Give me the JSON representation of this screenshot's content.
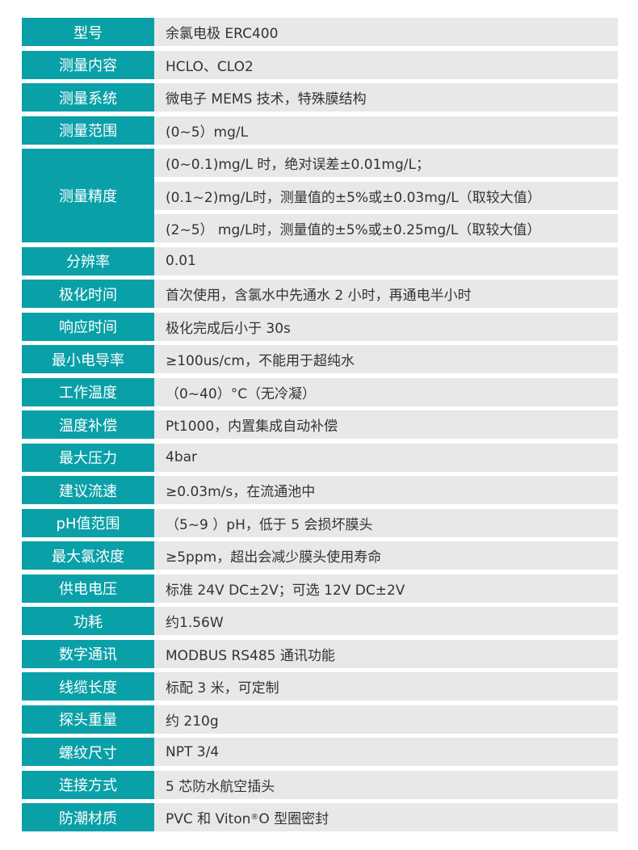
{
  "accent_color": "#0aa0a8",
  "rows": [
    {
      "label": "型号",
      "values": [
        "余氯电极   ERC400"
      ]
    },
    {
      "label": "测量内容",
      "values": [
        "HCLO、CLO2"
      ]
    },
    {
      "label": "测量系统",
      "values": [
        "微电子 MEMS 技术，特殊膜结构"
      ]
    },
    {
      "label": "测量范围",
      "values": [
        "(0~5）mg/L"
      ]
    },
    {
      "label": "测量精度",
      "values": [
        "(0~0.1)mg/L 时，绝对误差±0.01mg/L；",
        "(0.1~2)mg/L时，测量值的±5%或±0.03mg/L（取较大值）",
        "(2~5） mg/L时，测量值的±5%或±0.25mg/L（取较大值）"
      ]
    },
    {
      "label": "分辨率",
      "values": [
        "0.01"
      ]
    },
    {
      "label": "极化时间",
      "values": [
        "首次使用，含氯水中先通水 2 小时，再通电半小时"
      ]
    },
    {
      "label": "响应时间",
      "values": [
        "极化完成后小于 30s"
      ]
    },
    {
      "label": "最小电导率",
      "values": [
        "≥100us/cm，不能用于超纯水"
      ]
    },
    {
      "label": "工作温度",
      "values": [
        "（0~40）°C（无冷凝）"
      ]
    },
    {
      "label": "温度补偿",
      "values": [
        "Pt1000，内置集成自动补偿"
      ]
    },
    {
      "label": "最大压力",
      "values": [
        "4bar"
      ]
    },
    {
      "label": "建议流速",
      "values": [
        "≥0.03m/s，在流通池中"
      ]
    },
    {
      "label": "pH值范围",
      "values": [
        "（5~9 ）pH，低于 5 会损坏膜头"
      ]
    },
    {
      "label": "最大氯浓度",
      "values": [
        "≥5ppm，超出会减少膜头使用寿命"
      ]
    },
    {
      "label": "供电电压",
      "values": [
        "标准 24V DC±2V；可选 12V DC±2V"
      ]
    },
    {
      "label": "功耗",
      "values": [
        "约1.56W"
      ]
    },
    {
      "label": "数字通讯",
      "values": [
        "MODBUS RS485 通讯功能"
      ]
    },
    {
      "label": "线缆长度",
      "values": [
        "标配 3 米，可定制"
      ]
    },
    {
      "label": "探头重量",
      "values": [
        "约 210g"
      ]
    },
    {
      "label": "螺纹尺寸",
      "values": [
        "NPT 3/4"
      ]
    },
    {
      "label": "连接方式",
      "values": [
        "5 芯防水航空插头"
      ]
    },
    {
      "label": "防潮材质",
      "values": [
        "PVC 和 Viton® O 型圈密封"
      ]
    }
  ]
}
